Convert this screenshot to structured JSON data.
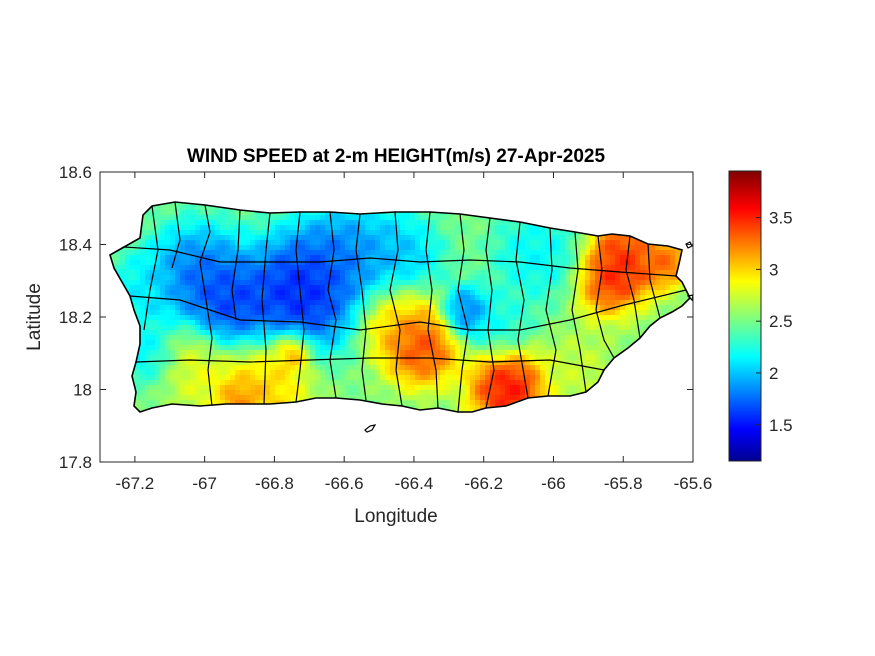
{
  "chart_data": {
    "type": "heatmap",
    "title": "WIND SPEED at 2-m HEIGHT(m/s) 27-Apr-2025",
    "xlabel": "Longitude",
    "ylabel": "Latitude",
    "xlim": [
      -67.3,
      -65.6
    ],
    "ylim": [
      17.8,
      18.6
    ],
    "xticks": [
      -67.2,
      -67,
      -66.8,
      -66.6,
      -66.4,
      -66.2,
      -66,
      -65.8,
      -65.6
    ],
    "xtick_labels": [
      "-67.2",
      "-67",
      "-66.8",
      "-66.6",
      "-66.4",
      "-66.2",
      "-66",
      "-65.8",
      "-65.6"
    ],
    "yticks": [
      17.8,
      18,
      18.2,
      18.4,
      18.6
    ],
    "ytick_labels": [
      "17.8",
      "18",
      "18.2",
      "18.4",
      "18.6"
    ],
    "colorbar": {
      "colormap": "jet",
      "range": [
        1.15,
        3.95
      ],
      "ticks": [
        1.5,
        2,
        2.5,
        3,
        3.5
      ],
      "tick_labels": [
        "1.5",
        "2",
        "2.5",
        "3",
        "3.5"
      ]
    },
    "field": {
      "background": 2.55,
      "features": [
        {
          "lon": -66.72,
          "lat": 18.27,
          "value": 1.3,
          "spread": 0.09
        },
        {
          "lon": -66.92,
          "lat": 18.23,
          "value": 1.45,
          "spread": 0.07
        },
        {
          "lon": -67.02,
          "lat": 18.31,
          "value": 1.6,
          "spread": 0.08
        },
        {
          "lon": -66.6,
          "lat": 18.36,
          "value": 1.7,
          "spread": 0.08
        },
        {
          "lon": -66.45,
          "lat": 18.36,
          "value": 1.9,
          "spread": 0.07
        },
        {
          "lon": -66.25,
          "lat": 18.21,
          "value": 1.6,
          "spread": 0.04
        },
        {
          "lon": -66.05,
          "lat": 18.37,
          "value": 2.1,
          "spread": 0.07
        },
        {
          "lon": -67.18,
          "lat": 18.27,
          "value": 2.1,
          "spread": 0.06
        },
        {
          "lon": -67.15,
          "lat": 18.1,
          "value": 2.0,
          "spread": 0.05
        },
        {
          "lon": -66.15,
          "lat": 18.18,
          "value": 2.2,
          "spread": 0.05
        },
        {
          "lon": -66.38,
          "lat": 18.12,
          "value": 3.65,
          "spread": 0.06
        },
        {
          "lon": -66.13,
          "lat": 18.0,
          "value": 3.85,
          "spread": 0.06
        },
        {
          "lon": -66.45,
          "lat": 18.2,
          "value": 3.2,
          "spread": 0.06
        },
        {
          "lon": -66.85,
          "lat": 18.0,
          "value": 3.2,
          "spread": 0.08
        },
        {
          "lon": -66.75,
          "lat": 18.1,
          "value": 3.4,
          "spread": 0.03
        },
        {
          "lon": -66.9,
          "lat": 17.97,
          "value": 3.4,
          "spread": 0.03
        },
        {
          "lon": -67.05,
          "lat": 18.08,
          "value": 2.95,
          "spread": 0.06
        },
        {
          "lon": -65.82,
          "lat": 18.3,
          "value": 3.75,
          "spread": 0.06
        },
        {
          "lon": -65.8,
          "lat": 18.38,
          "value": 3.6,
          "spread": 0.05
        },
        {
          "lon": -65.68,
          "lat": 18.35,
          "value": 3.5,
          "spread": 0.04
        },
        {
          "lon": -65.92,
          "lat": 18.05,
          "value": 2.8,
          "spread": 0.06
        },
        {
          "lon": -65.75,
          "lat": 18.15,
          "value": 2.6,
          "spread": 0.06
        }
      ]
    }
  }
}
